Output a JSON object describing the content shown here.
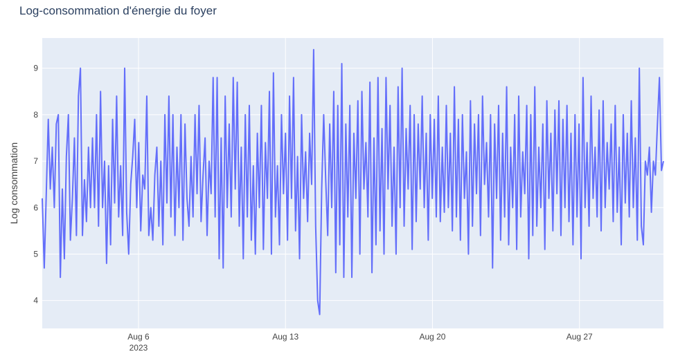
{
  "chart_data": {
    "type": "line",
    "title": "Log-consommation d'énergie du foyer",
    "xlabel": "",
    "ylabel": "Log consommation",
    "x_start": "2023-08-01 10:00",
    "x_end": "2023-08-31 00:00",
    "xlim": [
      "2023-08-01 10:00",
      "2023-08-31 00:00"
    ],
    "ylim": [
      3.4,
      9.65
    ],
    "x_ticks": [
      {
        "date": "2023-08-06",
        "label": "Aug 6",
        "sublabel": "2023"
      },
      {
        "date": "2023-08-13",
        "label": "Aug 13",
        "sublabel": ""
      },
      {
        "date": "2023-08-20",
        "label": "Aug 20",
        "sublabel": ""
      },
      {
        "date": "2023-08-27",
        "label": "Aug 27",
        "sublabel": ""
      }
    ],
    "y_ticks": [
      4,
      5,
      6,
      7,
      8,
      9
    ],
    "grid": true,
    "legend": "none",
    "colors": {
      "line": "#636efa",
      "plot_bg": "#e5ecf6",
      "grid": "#ffffff",
      "text": "#2a3f5f",
      "tick_text": "#444444"
    },
    "series": [
      {
        "name": "",
        "values": [
          6.2,
          4.7,
          6.3,
          7.9,
          6.4,
          7.3,
          6.0,
          7.8,
          8.0,
          4.5,
          6.4,
          4.9,
          7.1,
          8.0,
          5.3,
          6.2,
          7.5,
          5.4,
          8.4,
          9.0,
          5.4,
          6.6,
          5.7,
          7.3,
          6.0,
          7.5,
          6.0,
          8.0,
          5.6,
          8.5,
          6.0,
          7.0,
          4.8,
          6.9,
          5.2,
          7.9,
          6.1,
          8.4,
          5.8,
          6.9,
          5.4,
          9.0,
          5.9,
          5.0,
          6.5,
          7.1,
          7.9,
          6.0,
          7.4,
          5.5,
          6.7,
          6.4,
          8.4,
          5.4,
          6.0,
          5.3,
          6.7,
          7.3,
          5.6,
          7.0,
          5.2,
          8.0,
          6.1,
          8.4,
          5.8,
          8.0,
          5.4,
          7.3,
          6.0,
          8.0,
          5.3,
          7.8,
          6.2,
          5.6,
          7.1,
          5.8,
          8.0,
          6.3,
          8.2,
          5.7,
          6.7,
          7.5,
          5.4,
          7.0,
          6.3,
          8.8,
          5.8,
          8.8,
          4.9,
          7.5,
          4.7,
          8.4,
          6.0,
          7.8,
          5.8,
          8.8,
          6.4,
          8.7,
          5.6,
          7.3,
          4.9,
          8.0,
          5.8,
          8.2,
          5.3,
          6.9,
          5.0,
          7.6,
          6.0,
          8.2,
          5.1,
          7.4,
          6.2,
          8.5,
          5.0,
          8.9,
          5.8,
          6.9,
          5.2,
          8.0,
          6.3,
          7.6,
          5.3,
          8.4,
          6.2,
          8.8,
          5.5,
          7.1,
          4.9,
          8.0,
          6.2,
          7.2,
          5.7,
          7.6,
          6.5,
          9.4,
          5.6,
          4.0,
          3.7,
          6.4,
          8.0,
          6.6,
          5.4,
          7.8,
          6.0,
          8.5,
          4.6,
          8.2,
          5.2,
          9.1,
          4.5,
          7.8,
          5.8,
          8.2,
          4.5,
          7.6,
          6.2,
          8.3,
          5.0,
          8.5,
          6.4,
          7.4,
          5.8,
          8.7,
          4.6,
          7.5,
          5.2,
          8.8,
          5.5,
          7.7,
          5.0,
          8.8,
          6.4,
          8.2,
          5.6,
          7.3,
          5.0,
          8.6,
          6.0,
          9.0,
          5.6,
          7.7,
          6.4,
          8.2,
          5.1,
          8.0,
          5.7,
          7.8,
          6.4,
          8.4,
          6.0,
          7.6,
          5.3,
          8.0,
          6.2,
          7.9,
          5.8,
          8.4,
          5.7,
          7.3,
          5.9,
          8.2,
          6.0,
          7.6,
          5.5,
          8.6,
          5.8,
          7.9,
          5.3,
          8.0,
          6.2,
          7.2,
          5.0,
          8.3,
          5.6,
          7.8,
          6.3,
          8.0,
          5.4,
          8.4,
          6.5,
          7.4,
          5.8,
          8.0,
          4.7,
          7.8,
          6.2,
          8.2,
          5.3,
          7.6,
          5.8,
          8.6,
          5.2,
          7.3,
          6.0,
          8.0,
          5.1,
          8.4,
          5.8,
          7.2,
          6.3,
          8.2,
          4.9,
          8.0,
          5.4,
          8.6,
          5.6,
          7.3,
          6.0,
          7.8,
          5.1,
          8.3,
          6.2,
          7.6,
          5.5,
          8.1,
          6.3,
          8.3,
          5.4,
          7.9,
          6.0,
          8.2,
          5.7,
          7.6,
          5.2,
          8.0,
          5.8,
          7.8,
          4.9,
          8.8,
          6.0,
          7.4,
          5.6,
          8.4,
          6.2,
          7.3,
          5.8,
          8.1,
          5.5,
          8.3,
          6.0,
          7.4,
          6.4,
          7.8,
          5.7,
          8.2,
          5.9,
          7.3,
          5.2,
          8.0,
          6.1,
          7.6,
          5.8,
          8.3,
          6.0,
          7.5,
          5.3,
          9.0,
          5.6,
          5.2,
          7.0,
          6.7,
          7.3,
          5.9,
          7.0,
          6.7,
          7.8,
          8.8,
          6.8,
          7.0
        ]
      }
    ]
  }
}
